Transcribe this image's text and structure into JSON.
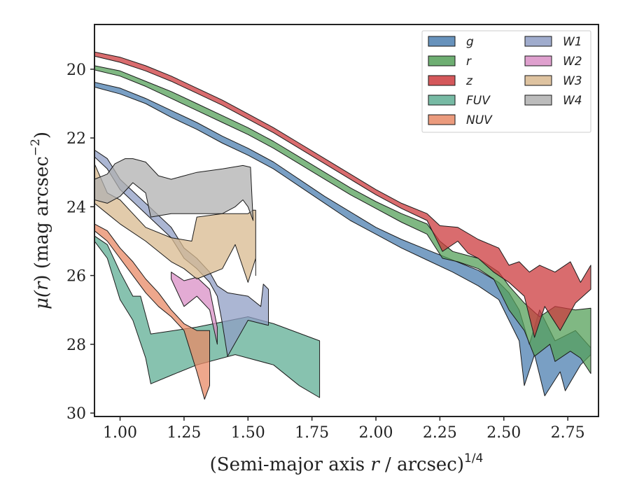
{
  "chart_data": {
    "type": "area",
    "title": "",
    "xlabel_main": "(Semi-major axis ",
    "xlabel_var": "r",
    "xlabel_rest": " / arcsec)",
    "xlabel_sup": "1/4",
    "ylabel_mu": "μ(",
    "ylabel_var": "r",
    "ylabel_rest": ") (mag arcsec",
    "ylabel_sup": "−2",
    "ylabel_end": ")",
    "xlim": [
      0.9,
      2.87
    ],
    "ylim": [
      30.1,
      18.7
    ],
    "y_inverted": true,
    "xticks": [
      1.0,
      1.25,
      1.5,
      1.75,
      2.0,
      2.25,
      2.5,
      2.75
    ],
    "xtick_labels": [
      "1.00",
      "1.25",
      "1.50",
      "1.75",
      "2.00",
      "2.25",
      "2.50",
      "2.75"
    ],
    "yticks": [
      20,
      22,
      24,
      26,
      28,
      30
    ],
    "ytick_labels": [
      "20",
      "22",
      "24",
      "26",
      "28",
      "30"
    ],
    "legend_position": "top-right",
    "legend_columns": 2,
    "series": [
      {
        "name": "g",
        "color": "#4c7fb0",
        "upper": [
          [
            0.9,
            20.38
          ],
          [
            1.0,
            20.55
          ],
          [
            1.1,
            20.85
          ],
          [
            1.2,
            21.2
          ],
          [
            1.3,
            21.55
          ],
          [
            1.4,
            21.95
          ],
          [
            1.5,
            22.3
          ],
          [
            1.6,
            22.7
          ],
          [
            1.7,
            23.2
          ],
          [
            1.8,
            23.7
          ],
          [
            1.9,
            24.15
          ],
          [
            2.0,
            24.6
          ],
          [
            2.1,
            24.95
          ],
          [
            2.2,
            25.25
          ],
          [
            2.3,
            25.55
          ],
          [
            2.4,
            25.85
          ],
          [
            2.48,
            26.2
          ],
          [
            2.52,
            26.5
          ],
          [
            2.56,
            27.0
          ],
          [
            2.6,
            28.0
          ],
          [
            2.64,
            27.0
          ],
          [
            2.7,
            27.9
          ],
          [
            2.78,
            27.6
          ],
          [
            2.84,
            28.1
          ]
        ],
        "lower": [
          [
            0.9,
            20.52
          ],
          [
            1.0,
            20.72
          ],
          [
            1.1,
            21.0
          ],
          [
            1.2,
            21.4
          ],
          [
            1.3,
            21.75
          ],
          [
            1.4,
            22.15
          ],
          [
            1.5,
            22.5
          ],
          [
            1.6,
            22.9
          ],
          [
            1.7,
            23.4
          ],
          [
            1.8,
            23.9
          ],
          [
            1.9,
            24.4
          ],
          [
            2.0,
            24.8
          ],
          [
            2.1,
            25.2
          ],
          [
            2.2,
            25.55
          ],
          [
            2.3,
            25.9
          ],
          [
            2.4,
            26.3
          ],
          [
            2.48,
            26.7
          ],
          [
            2.52,
            27.3
          ],
          [
            2.56,
            27.9
          ],
          [
            2.58,
            29.2
          ],
          [
            2.62,
            28.3
          ],
          [
            2.66,
            29.5
          ],
          [
            2.72,
            28.8
          ],
          [
            2.74,
            29.35
          ],
          [
            2.8,
            28.6
          ],
          [
            2.84,
            28.3
          ]
        ]
      },
      {
        "name": "r",
        "color": "#55a059",
        "upper": [
          [
            0.9,
            19.9
          ],
          [
            1.0,
            20.05
          ],
          [
            1.1,
            20.35
          ],
          [
            1.2,
            20.65
          ],
          [
            1.3,
            21.0
          ],
          [
            1.4,
            21.35
          ],
          [
            1.5,
            21.7
          ],
          [
            1.6,
            22.1
          ],
          [
            1.7,
            22.55
          ],
          [
            1.8,
            23.0
          ],
          [
            1.9,
            23.45
          ],
          [
            2.0,
            23.85
          ],
          [
            2.1,
            24.2
          ],
          [
            2.2,
            24.5
          ],
          [
            2.25,
            25.0
          ],
          [
            2.3,
            25.3
          ],
          [
            2.4,
            25.5
          ],
          [
            2.48,
            25.9
          ],
          [
            2.52,
            26.3
          ],
          [
            2.58,
            26.8
          ],
          [
            2.64,
            27.2
          ],
          [
            2.7,
            26.9
          ],
          [
            2.78,
            27.0
          ],
          [
            2.84,
            26.95
          ]
        ],
        "lower": [
          [
            0.9,
            20.02
          ],
          [
            1.0,
            20.2
          ],
          [
            1.1,
            20.5
          ],
          [
            1.2,
            20.85
          ],
          [
            1.3,
            21.2
          ],
          [
            1.4,
            21.55
          ],
          [
            1.5,
            21.9
          ],
          [
            1.6,
            22.3
          ],
          [
            1.7,
            22.75
          ],
          [
            1.8,
            23.2
          ],
          [
            1.9,
            23.65
          ],
          [
            2.0,
            24.05
          ],
          [
            2.1,
            24.45
          ],
          [
            2.2,
            24.8
          ],
          [
            2.26,
            25.5
          ],
          [
            2.32,
            25.6
          ],
          [
            2.4,
            25.8
          ],
          [
            2.46,
            26.1
          ],
          [
            2.52,
            27.0
          ],
          [
            2.58,
            27.6
          ],
          [
            2.62,
            28.35
          ],
          [
            2.68,
            28.0
          ],
          [
            2.7,
            28.5
          ],
          [
            2.76,
            28.2
          ],
          [
            2.8,
            28.4
          ],
          [
            2.84,
            28.85
          ]
        ]
      },
      {
        "name": "z",
        "color": "#cc3b3e",
        "upper": [
          [
            0.9,
            19.5
          ],
          [
            1.0,
            19.65
          ],
          [
            1.1,
            19.9
          ],
          [
            1.2,
            20.2
          ],
          [
            1.3,
            20.55
          ],
          [
            1.4,
            20.9
          ],
          [
            1.5,
            21.3
          ],
          [
            1.6,
            21.7
          ],
          [
            1.7,
            22.15
          ],
          [
            1.8,
            22.6
          ],
          [
            1.9,
            23.05
          ],
          [
            2.0,
            23.5
          ],
          [
            2.1,
            23.9
          ],
          [
            2.2,
            24.2
          ],
          [
            2.25,
            24.55
          ],
          [
            2.32,
            24.6
          ],
          [
            2.4,
            24.95
          ],
          [
            2.48,
            25.2
          ],
          [
            2.52,
            25.7
          ],
          [
            2.56,
            25.6
          ],
          [
            2.6,
            25.9
          ],
          [
            2.64,
            25.7
          ],
          [
            2.7,
            25.9
          ],
          [
            2.76,
            25.6
          ],
          [
            2.8,
            26.2
          ],
          [
            2.84,
            25.7
          ]
        ],
        "lower": [
          [
            0.9,
            19.62
          ],
          [
            1.0,
            19.8
          ],
          [
            1.1,
            20.05
          ],
          [
            1.2,
            20.35
          ],
          [
            1.3,
            20.7
          ],
          [
            1.4,
            21.05
          ],
          [
            1.5,
            21.45
          ],
          [
            1.6,
            21.85
          ],
          [
            1.7,
            22.3
          ],
          [
            1.8,
            22.75
          ],
          [
            1.9,
            23.2
          ],
          [
            2.0,
            23.65
          ],
          [
            2.1,
            24.05
          ],
          [
            2.2,
            24.4
          ],
          [
            2.26,
            25.3
          ],
          [
            2.32,
            25.0
          ],
          [
            2.36,
            25.35
          ],
          [
            2.4,
            25.5
          ],
          [
            2.46,
            25.9
          ],
          [
            2.52,
            26.2
          ],
          [
            2.58,
            26.6
          ],
          [
            2.62,
            27.8
          ],
          [
            2.66,
            26.9
          ],
          [
            2.72,
            27.6
          ],
          [
            2.78,
            26.8
          ],
          [
            2.84,
            26.4
          ]
        ]
      },
      {
        "name": "FUV",
        "color": "#5fae94",
        "upper": [
          [
            0.9,
            24.85
          ],
          [
            0.95,
            25.1
          ],
          [
            1.0,
            25.9
          ],
          [
            1.05,
            26.6
          ],
          [
            1.08,
            26.6
          ],
          [
            1.12,
            27.7
          ],
          [
            1.3,
            27.5
          ],
          [
            1.5,
            27.2
          ],
          [
            1.6,
            27.4
          ],
          [
            1.78,
            27.9
          ]
        ],
        "lower": [
          [
            0.9,
            25.0
          ],
          [
            0.95,
            25.5
          ],
          [
            1.0,
            26.7
          ],
          [
            1.05,
            27.3
          ],
          [
            1.1,
            28.4
          ],
          [
            1.12,
            29.15
          ],
          [
            1.2,
            28.9
          ],
          [
            1.3,
            28.6
          ],
          [
            1.45,
            28.3
          ],
          [
            1.6,
            28.6
          ],
          [
            1.7,
            29.2
          ],
          [
            1.78,
            29.55
          ]
        ]
      },
      {
        "name": "NUV",
        "color": "#e88a66",
        "upper": [
          [
            0.9,
            24.5
          ],
          [
            0.95,
            24.7
          ],
          [
            1.0,
            25.2
          ],
          [
            1.05,
            25.6
          ],
          [
            1.1,
            26.1
          ],
          [
            1.15,
            26.5
          ],
          [
            1.2,
            27.0
          ],
          [
            1.25,
            27.4
          ],
          [
            1.3,
            27.6
          ],
          [
            1.35,
            27.6
          ]
        ],
        "lower": [
          [
            0.9,
            24.7
          ],
          [
            0.95,
            25.0
          ],
          [
            1.0,
            25.5
          ],
          [
            1.05,
            26.0
          ],
          [
            1.1,
            26.5
          ],
          [
            1.15,
            26.9
          ],
          [
            1.2,
            27.2
          ],
          [
            1.25,
            27.6
          ],
          [
            1.3,
            28.8
          ],
          [
            1.33,
            29.6
          ],
          [
            1.35,
            29.2
          ]
        ]
      },
      {
        "name": "W1",
        "color": "#8f9ec4",
        "upper": [
          [
            0.9,
            22.35
          ],
          [
            0.95,
            22.6
          ],
          [
            1.0,
            23.2
          ],
          [
            1.1,
            23.9
          ],
          [
            1.2,
            24.6
          ],
          [
            1.25,
            25.2
          ],
          [
            1.3,
            25.5
          ],
          [
            1.35,
            25.9
          ],
          [
            1.38,
            26.3
          ],
          [
            1.42,
            26.5
          ],
          [
            1.5,
            26.6
          ],
          [
            1.55,
            26.9
          ],
          [
            1.56,
            26.25
          ],
          [
            1.58,
            26.4
          ],
          [
            1.58,
            27.45
          ]
        ],
        "lower": [
          [
            0.9,
            22.55
          ],
          [
            0.95,
            22.9
          ],
          [
            1.0,
            23.5
          ],
          [
            1.1,
            24.2
          ],
          [
            1.2,
            24.9
          ],
          [
            1.25,
            25.5
          ],
          [
            1.3,
            25.8
          ],
          [
            1.35,
            26.2
          ],
          [
            1.38,
            26.6
          ],
          [
            1.4,
            27.4
          ],
          [
            1.42,
            28.35
          ],
          [
            1.5,
            27.3
          ],
          [
            1.58,
            27.45
          ]
        ]
      },
      {
        "name": "W2",
        "color": "#d98fc5",
        "upper": [
          [
            1.2,
            25.9
          ],
          [
            1.25,
            26.15
          ],
          [
            1.3,
            26.05
          ],
          [
            1.35,
            26.4
          ],
          [
            1.38,
            27.5
          ]
        ],
        "lower": [
          [
            1.2,
            26.1
          ],
          [
            1.25,
            26.9
          ],
          [
            1.3,
            26.6
          ],
          [
            1.35,
            27.0
          ],
          [
            1.38,
            28.0
          ]
        ]
      },
      {
        "name": "W3",
        "color": "#d8b98f",
        "upper": [
          [
            0.9,
            22.75
          ],
          [
            0.95,
            23.6
          ],
          [
            1.0,
            23.8
          ],
          [
            1.05,
            24.2
          ],
          [
            1.1,
            24.6
          ],
          [
            1.2,
            24.9
          ],
          [
            1.28,
            25.0
          ],
          [
            1.3,
            24.3
          ],
          [
            1.4,
            24.2
          ],
          [
            1.5,
            24.2
          ],
          [
            1.52,
            24.1
          ],
          [
            1.53,
            24.1
          ],
          [
            1.53,
            26.0
          ]
        ],
        "lower": [
          [
            0.9,
            23.9
          ],
          [
            0.95,
            24.2
          ],
          [
            1.0,
            24.5
          ],
          [
            1.1,
            25.0
          ],
          [
            1.2,
            25.6
          ],
          [
            1.25,
            25.8
          ],
          [
            1.3,
            26.1
          ],
          [
            1.4,
            25.8
          ],
          [
            1.45,
            25.1
          ],
          [
            1.5,
            26.2
          ],
          [
            1.53,
            25.5
          ]
        ]
      },
      {
        "name": "W4",
        "color": "#b0b0b0",
        "upper": [
          [
            0.9,
            23.2
          ],
          [
            0.95,
            23.05
          ],
          [
            0.98,
            22.75
          ],
          [
            1.02,
            22.6
          ],
          [
            1.05,
            22.6
          ],
          [
            1.1,
            22.7
          ],
          [
            1.15,
            23.1
          ],
          [
            1.2,
            23.2
          ],
          [
            1.3,
            23.0
          ],
          [
            1.4,
            22.9
          ],
          [
            1.48,
            22.8
          ],
          [
            1.51,
            22.85
          ],
          [
            1.52,
            24.4
          ]
        ],
        "lower": [
          [
            0.9,
            23.8
          ],
          [
            0.95,
            23.9
          ],
          [
            1.0,
            23.7
          ],
          [
            1.05,
            23.3
          ],
          [
            1.1,
            23.6
          ],
          [
            1.12,
            24.3
          ],
          [
            1.2,
            24.2
          ],
          [
            1.3,
            24.2
          ],
          [
            1.4,
            24.2
          ],
          [
            1.45,
            24.0
          ],
          [
            1.48,
            23.8
          ],
          [
            1.5,
            24.0
          ],
          [
            1.52,
            24.4
          ]
        ]
      }
    ]
  }
}
